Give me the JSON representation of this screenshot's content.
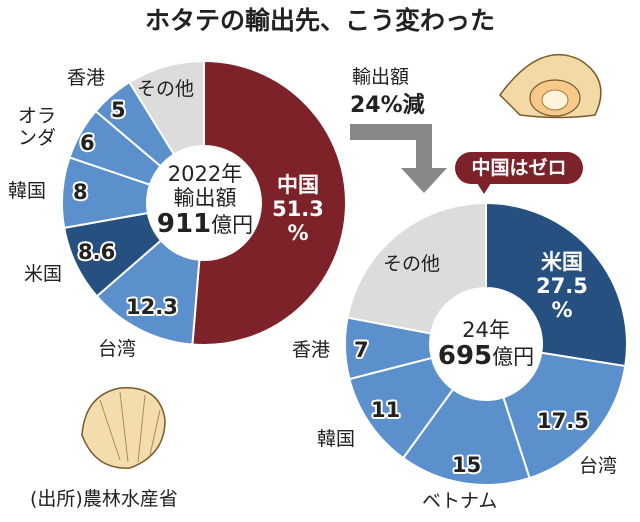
{
  "title": "ホタテの輸出先、こう変わった",
  "change": {
    "line1": "輸出額",
    "line2": "24%減"
  },
  "badge": "中国はゼロ",
  "source": "(出所)農林水産省",
  "colors": {
    "china": "#7d2229",
    "us": "#26507f",
    "blue": "#5b90cc",
    "other": "#dcdcdc"
  },
  "chart_data": [
    {
      "type": "pie",
      "donut": true,
      "center": {
        "line1": "2022年",
        "line2": "輸出額",
        "value": "911",
        "unit": "億円"
      },
      "slices": [
        {
          "name": "中国",
          "value": 51.3,
          "label": "51.3",
          "unit": "%",
          "color": "#7d2229"
        },
        {
          "name": "台湾",
          "value": 12.3,
          "label": "12.3",
          "color": "#5b90cc"
        },
        {
          "name": "米国",
          "value": 8.6,
          "label": "8.6",
          "color": "#26507f"
        },
        {
          "name": "韓国",
          "value": 8,
          "label": "8",
          "color": "#5b90cc"
        },
        {
          "name": "オランダ",
          "value": 6,
          "label": "6",
          "color": "#5b90cc"
        },
        {
          "name": "香港",
          "value": 5,
          "label": "5",
          "color": "#5b90cc"
        },
        {
          "name": "その他",
          "value": 8.8,
          "color": "#dcdcdc"
        }
      ]
    },
    {
      "type": "pie",
      "donut": true,
      "center": {
        "line1": "24年",
        "value": "695",
        "unit": "億円"
      },
      "slices": [
        {
          "name": "米国",
          "value": 27.5,
          "label": "27.5",
          "unit": "%",
          "color": "#26507f"
        },
        {
          "name": "台湾",
          "value": 17.5,
          "label": "17.5",
          "color": "#5b90cc"
        },
        {
          "name": "ベトナム",
          "value": 15,
          "label": "15",
          "color": "#5b90cc"
        },
        {
          "name": "韓国",
          "value": 11,
          "label": "11",
          "color": "#5b90cc"
        },
        {
          "name": "香港",
          "value": 7,
          "label": "7",
          "color": "#5b90cc"
        },
        {
          "name": "その他",
          "value": 22,
          "color": "#dcdcdc"
        }
      ]
    }
  ]
}
